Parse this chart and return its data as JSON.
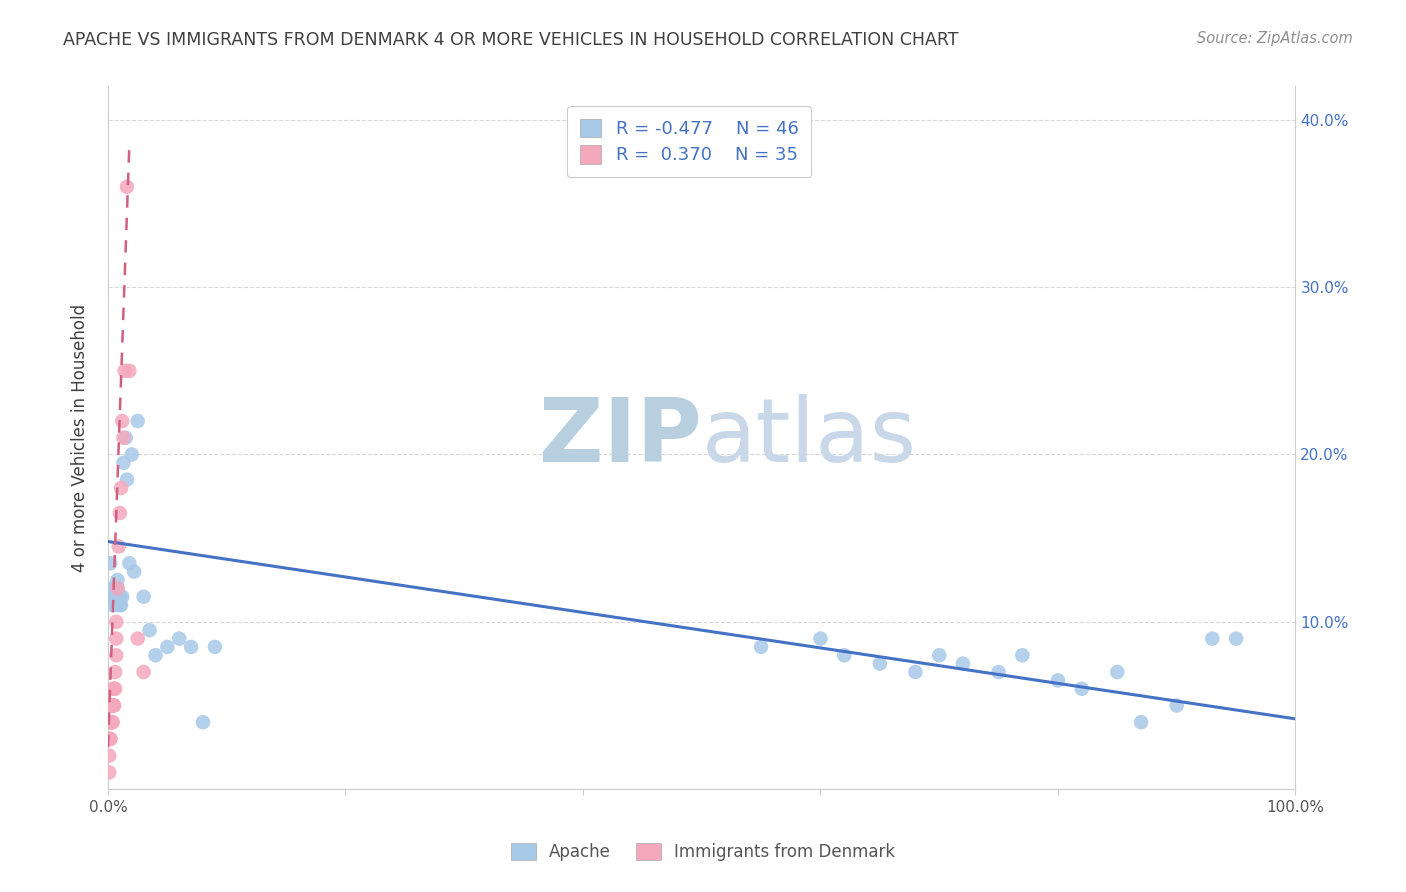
{
  "title": "APACHE VS IMMIGRANTS FROM DENMARK 4 OR MORE VEHICLES IN HOUSEHOLD CORRELATION CHART",
  "source": "Source: ZipAtlas.com",
  "ylabel": "4 or more Vehicles in Household",
  "xlim": [
    0.0,
    1.0
  ],
  "ylim": [
    0.0,
    0.42
  ],
  "xticks": [
    0.0,
    0.2,
    0.4,
    0.6,
    0.8,
    1.0
  ],
  "xticklabels": [
    "0.0%",
    "",
    "",
    "",
    "",
    "100.0%"
  ],
  "yticks": [
    0.0,
    0.1,
    0.2,
    0.3,
    0.4
  ],
  "yticklabels": [
    "",
    "10.0%",
    "20.0%",
    "30.0%",
    "40.0%"
  ],
  "legend_r1": "R = -0.477",
  "legend_n1": "N = 46",
  "legend_r2": "R =  0.370",
  "legend_n2": "N = 35",
  "blue_color": "#a8c8e8",
  "pink_color": "#f4a8bc",
  "blue_line_color": "#4472c4",
  "pink_line_color": "#d06080",
  "title_color": "#404040",
  "source_color": "#909090",
  "grid_color": "#d8d8d8",
  "watermark_color": "#ccd8e8",
  "apache_x": [
    0.002,
    0.003,
    0.004,
    0.004,
    0.005,
    0.006,
    0.007,
    0.007,
    0.008,
    0.008,
    0.009,
    0.01,
    0.01,
    0.011,
    0.012,
    0.013,
    0.015,
    0.016,
    0.018,
    0.02,
    0.022,
    0.025,
    0.03,
    0.035,
    0.04,
    0.05,
    0.06,
    0.07,
    0.08,
    0.09,
    0.55,
    0.6,
    0.62,
    0.65,
    0.68,
    0.7,
    0.72,
    0.75,
    0.77,
    0.8,
    0.82,
    0.85,
    0.87,
    0.9,
    0.93,
    0.95
  ],
  "apache_y": [
    0.135,
    0.12,
    0.115,
    0.11,
    0.115,
    0.12,
    0.115,
    0.11,
    0.12,
    0.125,
    0.115,
    0.11,
    0.115,
    0.11,
    0.115,
    0.195,
    0.21,
    0.185,
    0.135,
    0.2,
    0.13,
    0.22,
    0.115,
    0.095,
    0.08,
    0.085,
    0.09,
    0.085,
    0.04,
    0.085,
    0.085,
    0.09,
    0.08,
    0.075,
    0.07,
    0.08,
    0.075,
    0.07,
    0.08,
    0.065,
    0.06,
    0.07,
    0.04,
    0.05,
    0.09,
    0.09
  ],
  "denmark_x": [
    0.001,
    0.001,
    0.001,
    0.001,
    0.002,
    0.002,
    0.002,
    0.002,
    0.002,
    0.003,
    0.003,
    0.003,
    0.004,
    0.004,
    0.004,
    0.004,
    0.005,
    0.005,
    0.005,
    0.006,
    0.006,
    0.007,
    0.007,
    0.007,
    0.008,
    0.009,
    0.01,
    0.011,
    0.012,
    0.013,
    0.014,
    0.016,
    0.018,
    0.025,
    0.03
  ],
  "denmark_y": [
    0.01,
    0.02,
    0.03,
    0.04,
    0.03,
    0.04,
    0.05,
    0.04,
    0.03,
    0.04,
    0.05,
    0.04,
    0.05,
    0.06,
    0.05,
    0.04,
    0.05,
    0.06,
    0.05,
    0.06,
    0.07,
    0.08,
    0.09,
    0.1,
    0.12,
    0.145,
    0.165,
    0.18,
    0.22,
    0.21,
    0.25,
    0.36,
    0.25,
    0.09,
    0.07
  ],
  "blue_line_x": [
    0.0,
    1.0
  ],
  "blue_line_y": [
    0.148,
    0.042
  ],
  "pink_line_x": [
    0.0,
    0.018
  ],
  "pink_line_y": [
    0.025,
    0.385
  ]
}
